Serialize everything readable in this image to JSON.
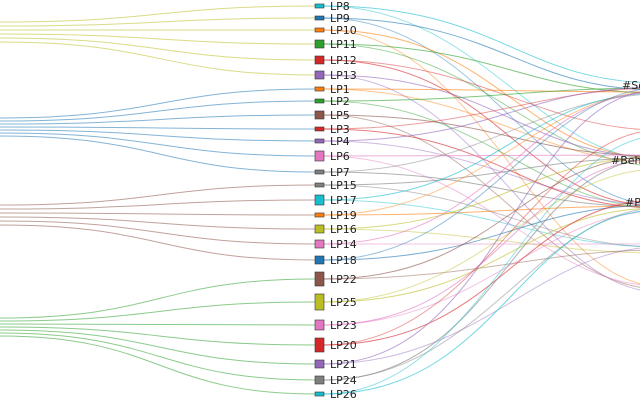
{
  "nodes": [
    {
      "label": "LP8",
      "color": "#17becf"
    },
    {
      "label": "LP9",
      "color": "#1f77b4"
    },
    {
      "label": "LP10",
      "color": "#ff7f0e"
    },
    {
      "label": "LP11",
      "color": "#2ca02c"
    },
    {
      "label": "LP12",
      "color": "#d62728"
    },
    {
      "label": "LP13",
      "color": "#9467bd"
    },
    {
      "label": "LP1",
      "color": "#ff7f0e"
    },
    {
      "label": "LP2",
      "color": "#2ca02c"
    },
    {
      "label": "LP5",
      "color": "#8c564b"
    },
    {
      "label": "LP3",
      "color": "#d62728"
    },
    {
      "label": "LP4",
      "color": "#9467bd"
    },
    {
      "label": "LP6",
      "color": "#e377c2"
    },
    {
      "label": "LP7",
      "color": "#7f7f7f"
    },
    {
      "label": "LP15",
      "color": "#7f7f7f"
    },
    {
      "label": "LP17",
      "color": "#17becf"
    },
    {
      "label": "LP19",
      "color": "#ff7f0e"
    },
    {
      "label": "LP16",
      "color": "#bcbd22"
    },
    {
      "label": "LP14",
      "color": "#e377c2"
    },
    {
      "label": "LP18",
      "color": "#1f77b4"
    },
    {
      "label": "LP22",
      "color": "#8c564b"
    },
    {
      "label": "LP25",
      "color": "#bcbd22"
    },
    {
      "label": "LP23",
      "color": "#e377c2"
    },
    {
      "label": "LP20",
      "color": "#d62728"
    },
    {
      "label": "LP21",
      "color": "#9467bd"
    },
    {
      "label": "LP24",
      "color": "#7f7f7f"
    },
    {
      "label": "LP26",
      "color": "#17becf"
    }
  ],
  "categories": [
    {
      "label": "#So"
    },
    {
      "label": "#Beha"
    },
    {
      "label": "#P"
    }
  ],
  "left_group_colors": [
    "#bcbd22",
    "#1f77b4",
    "#8c564b",
    "#2ca02c"
  ]
}
